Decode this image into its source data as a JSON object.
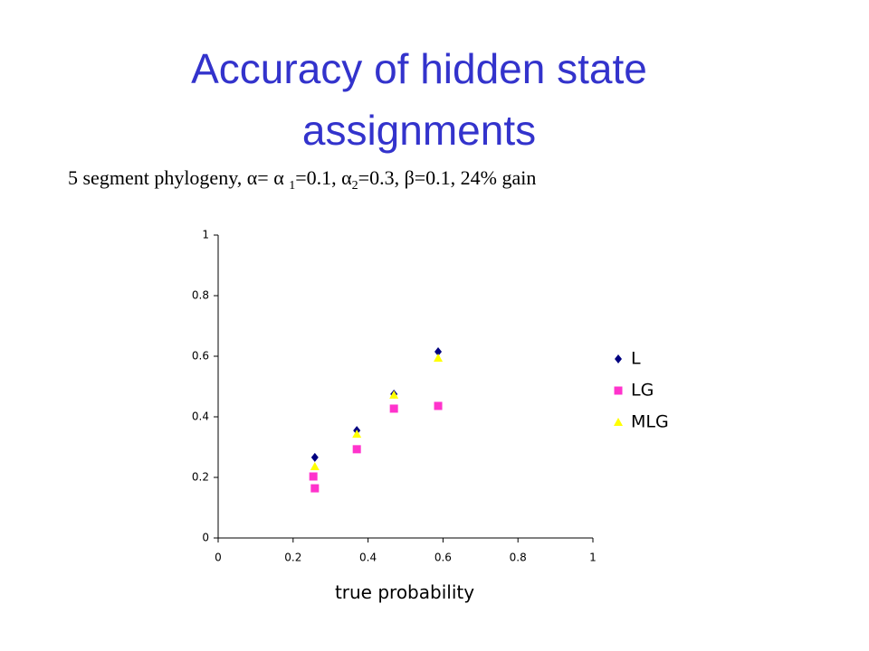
{
  "slide": {
    "title": [
      "Accuracy of hidden state",
      "assignments"
    ],
    "subtitle_parts": [
      "5 segment phylogeny, α= α ",
      "1",
      "=0.1, α",
      "2",
      "=0.3, β=0.1, 24% gain"
    ]
  },
  "chart_data": {
    "type": "scatter",
    "xlabel": "true probability",
    "xlim": [
      0,
      1
    ],
    "xticks": [
      0,
      0.2,
      0.4,
      0.6,
      0.8,
      1
    ],
    "ylim": [
      0,
      1
    ],
    "yticks": [
      0,
      0.2,
      0.4,
      0.6,
      0.8,
      1
    ],
    "legend": "right",
    "series": [
      {
        "name": "L",
        "color": "#000080",
        "marker": "diamond",
        "x": [
          0.258,
          0.37,
          0.469,
          0.587
        ],
        "values": [
          0.266,
          0.355,
          0.475,
          0.615
        ]
      },
      {
        "name": "LG",
        "color": "#ff33cc",
        "marker": "square",
        "x": [
          0.254,
          0.258,
          0.37,
          0.469,
          0.587
        ],
        "values": [
          0.203,
          0.164,
          0.293,
          0.427,
          0.436
        ]
      },
      {
        "name": "MLG",
        "color": "#ffff00",
        "marker": "triangle",
        "x": [
          0.258,
          0.37,
          0.469,
          0.587
        ],
        "values": [
          0.236,
          0.343,
          0.472,
          0.594
        ]
      }
    ]
  }
}
